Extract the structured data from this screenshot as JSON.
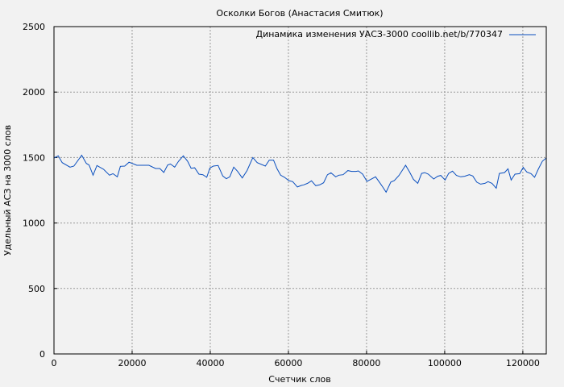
{
  "chart_data": {
    "type": "line",
    "title": "Осколки Богов (Анастасия Смитюк)",
    "xlabel": "Счетчик слов",
    "ylabel": "Удельный АСЗ на 3000 слов",
    "xlim": [
      0,
      126000
    ],
    "ylim": [
      0,
      2500
    ],
    "xticks": [
      0,
      20000,
      40000,
      60000,
      80000,
      100000,
      120000
    ],
    "yticks": [
      0,
      500,
      1000,
      1500,
      2000,
      2500
    ],
    "grid": true,
    "legend_position": "top-right",
    "colors": {
      "line": "#0a4fbf",
      "background": "#f2f2f2",
      "grid": "#999999"
    },
    "series": [
      {
        "name": "Динамика изменения УАСЗ-3000 coollib.net/b/770347",
        "x": [
          0,
          1100,
          2100,
          4100,
          5100,
          7100,
          8300,
          9000,
          10000,
          11000,
          12700,
          14200,
          15100,
          16200,
          17000,
          18100,
          19200,
          20400,
          21200,
          24300,
          26000,
          27100,
          28100,
          29100,
          29800,
          30900,
          31900,
          33100,
          34200,
          35100,
          36000,
          37100,
          38100,
          39100,
          39900,
          40800,
          42000,
          43200,
          44100,
          45000,
          46000,
          47000,
          48200,
          49400,
          50900,
          52000,
          54100,
          55100,
          56200,
          57100,
          58000,
          59000,
          60100,
          61100,
          62300,
          63300,
          63900,
          64900,
          65900,
          67000,
          68000,
          69000,
          70000,
          70900,
          72100,
          72900,
          74000,
          75200,
          76200,
          77300,
          77900,
          79000,
          80100,
          81000,
          82300,
          83400,
          84100,
          85000,
          86200,
          87100,
          88300,
          90000,
          91000,
          92000,
          93100,
          94100,
          94900,
          95800,
          97200,
          98200,
          99000,
          100100,
          101000,
          102000,
          103000,
          104100,
          105100,
          106300,
          107200,
          108200,
          109200,
          110300,
          111100,
          112100,
          113200,
          114000,
          115300,
          116200,
          117000,
          118000,
          119200,
          120100,
          121000,
          122100,
          123000,
          124000,
          125000,
          126000
        ],
        "y": [
          1496,
          1513,
          1461,
          1427,
          1435,
          1517,
          1455,
          1443,
          1365,
          1439,
          1410,
          1365,
          1377,
          1353,
          1433,
          1435,
          1464,
          1451,
          1441,
          1441,
          1416,
          1416,
          1386,
          1443,
          1451,
          1427,
          1472,
          1513,
          1472,
          1418,
          1422,
          1373,
          1369,
          1349,
          1420,
          1435,
          1439,
          1359,
          1338,
          1353,
          1427,
          1394,
          1344,
          1400,
          1500,
          1461,
          1435,
          1480,
          1480,
          1414,
          1365,
          1349,
          1324,
          1316,
          1275,
          1287,
          1291,
          1303,
          1322,
          1285,
          1291,
          1307,
          1369,
          1383,
          1353,
          1365,
          1369,
          1400,
          1394,
          1394,
          1398,
          1373,
          1318,
          1332,
          1353,
          1307,
          1277,
          1236,
          1312,
          1324,
          1363,
          1441,
          1390,
          1334,
          1303,
          1379,
          1385,
          1373,
          1336,
          1357,
          1363,
          1328,
          1379,
          1396,
          1363,
          1353,
          1357,
          1369,
          1359,
          1312,
          1297,
          1303,
          1316,
          1303,
          1266,
          1379,
          1385,
          1414,
          1328,
          1373,
          1377,
          1424,
          1390,
          1377,
          1349,
          1414,
          1472,
          1496
        ]
      }
    ]
  }
}
